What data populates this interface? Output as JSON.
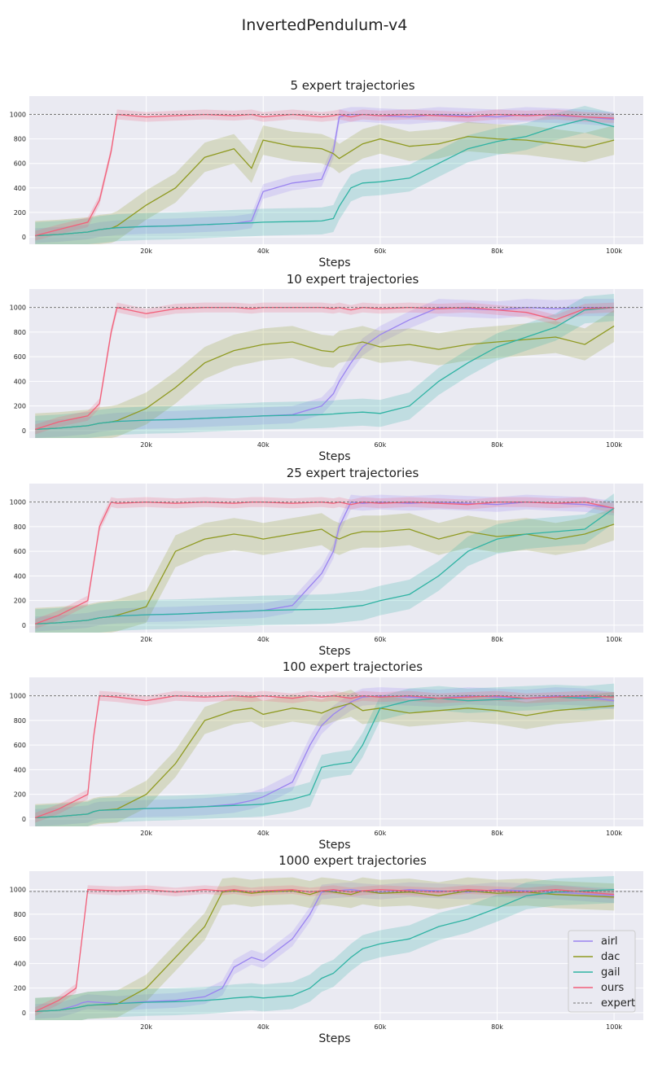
{
  "figure_title": "InvertedPendulum-v4",
  "colors": {
    "airl": "#9a83f0",
    "dac": "#8f9a21",
    "gail": "#2fb3a3",
    "ours": "#f2607a",
    "expert": "#777777",
    "panel_bg": "#eaeaf2",
    "grid": "#ffffff"
  },
  "chart_data": [
    {
      "type": "line",
      "title": "5 expert trajectories",
      "xlabel": "Steps",
      "ylabel": "",
      "xlim": [
        0,
        105000
      ],
      "ylim": [
        -60,
        1150
      ],
      "x_ticks": [
        20000,
        40000,
        60000,
        80000,
        100000
      ],
      "x_tick_labels": [
        "20k",
        "40k",
        "60k",
        "80k",
        "100k"
      ],
      "y_ticks": [
        0,
        200,
        400,
        600,
        800,
        1000
      ],
      "y_tick_labels": [
        "0",
        "200",
        "400",
        "600",
        "800",
        "1000"
      ],
      "expert_level": 1000,
      "x": [
        1000,
        5000,
        10000,
        12000,
        14000,
        15000,
        20000,
        25000,
        30000,
        35000,
        38000,
        40000,
        45000,
        50000,
        52000,
        53000,
        55000,
        57000,
        60000,
        65000,
        70000,
        75000,
        80000,
        85000,
        90000,
        95000,
        100000
      ],
      "series": [
        {
          "name": "airl",
          "values": [
            10,
            20,
            40,
            60,
            70,
            75,
            85,
            90,
            100,
            110,
            130,
            370,
            440,
            470,
            700,
            980,
            1000,
            1000,
            990,
            980,
            1000,
            990,
            980,
            1000,
            990,
            980,
            960
          ],
          "band": 60
        },
        {
          "name": "dac",
          "values": [
            10,
            20,
            40,
            60,
            70,
            90,
            260,
            400,
            650,
            720,
            560,
            790,
            740,
            720,
            680,
            640,
            700,
            760,
            800,
            740,
            760,
            820,
            800,
            790,
            760,
            730,
            790
          ],
          "band": 120
        },
        {
          "name": "gail",
          "values": [
            10,
            20,
            40,
            60,
            70,
            75,
            85,
            90,
            100,
            110,
            115,
            120,
            125,
            130,
            150,
            250,
            400,
            440,
            450,
            480,
            600,
            720,
            780,
            820,
            900,
            960,
            900
          ],
          "band": 110
        },
        {
          "name": "ours",
          "values": [
            10,
            60,
            120,
            300,
            700,
            1000,
            980,
            990,
            1000,
            990,
            1000,
            980,
            1000,
            980,
            990,
            1000,
            980,
            1000,
            990,
            1000,
            990,
            980,
            1000,
            990,
            1000,
            980,
            970
          ],
          "band": 40
        }
      ]
    },
    {
      "type": "line",
      "title": "10 expert trajectories",
      "xlabel": "Steps",
      "ylabel": "",
      "xlim": [
        0,
        105000
      ],
      "ylim": [
        -60,
        1150
      ],
      "x_ticks": [
        20000,
        40000,
        60000,
        80000,
        100000
      ],
      "x_tick_labels": [
        "20k",
        "40k",
        "60k",
        "80k",
        "100k"
      ],
      "y_ticks": [
        0,
        200,
        400,
        600,
        800,
        1000
      ],
      "y_tick_labels": [
        "0",
        "200",
        "400",
        "600",
        "800",
        "1000"
      ],
      "expert_level": 1000,
      "x": [
        1000,
        5000,
        10000,
        12000,
        14000,
        15000,
        20000,
        25000,
        30000,
        35000,
        38000,
        40000,
        45000,
        50000,
        52000,
        53000,
        55000,
        57000,
        60000,
        65000,
        70000,
        75000,
        80000,
        85000,
        90000,
        95000,
        100000
      ],
      "series": [
        {
          "name": "airl",
          "values": [
            10,
            20,
            40,
            60,
            70,
            75,
            85,
            90,
            100,
            110,
            115,
            120,
            130,
            200,
            300,
            400,
            550,
            680,
            780,
            900,
            1000,
            990,
            980,
            1000,
            990,
            1000,
            1000
          ],
          "band": 70
        },
        {
          "name": "dac",
          "values": [
            10,
            20,
            40,
            60,
            70,
            80,
            180,
            350,
            550,
            650,
            680,
            700,
            720,
            650,
            640,
            680,
            700,
            720,
            680,
            700,
            660,
            700,
            720,
            740,
            760,
            700,
            850
          ],
          "band": 130
        },
        {
          "name": "gail",
          "values": [
            10,
            20,
            40,
            60,
            70,
            75,
            85,
            90,
            100,
            110,
            115,
            120,
            125,
            130,
            135,
            140,
            145,
            150,
            140,
            200,
            400,
            550,
            680,
            760,
            840,
            980,
            1000
          ],
          "band": 110
        },
        {
          "name": "ours",
          "values": [
            10,
            70,
            120,
            220,
            800,
            1000,
            950,
            990,
            1000,
            1000,
            990,
            1000,
            1000,
            1000,
            990,
            1000,
            980,
            1000,
            990,
            1000,
            990,
            1000,
            980,
            960,
            900,
            990,
            1000
          ],
          "band": 40
        }
      ]
    },
    {
      "type": "line",
      "title": "25 expert trajectories",
      "xlabel": "Steps",
      "ylabel": "",
      "xlim": [
        0,
        105000
      ],
      "ylim": [
        -60,
        1150
      ],
      "x_ticks": [
        20000,
        40000,
        60000,
        80000,
        100000
      ],
      "x_tick_labels": [
        "20k",
        "40k",
        "60k",
        "80k",
        "100k"
      ],
      "y_ticks": [
        0,
        200,
        400,
        600,
        800,
        1000
      ],
      "y_tick_labels": [
        "0",
        "200",
        "400",
        "600",
        "800",
        "1000"
      ],
      "expert_level": 1000,
      "x": [
        1000,
        5000,
        10000,
        12000,
        14000,
        15000,
        20000,
        25000,
        30000,
        35000,
        38000,
        40000,
        45000,
        50000,
        52000,
        53000,
        55000,
        57000,
        60000,
        65000,
        70000,
        75000,
        80000,
        85000,
        90000,
        95000,
        100000
      ],
      "series": [
        {
          "name": "airl",
          "values": [
            10,
            20,
            40,
            60,
            70,
            75,
            85,
            90,
            100,
            110,
            115,
            120,
            160,
            420,
            600,
            800,
            1000,
            990,
            1000,
            990,
            1000,
            990,
            980,
            1000,
            990,
            980,
            950
          ],
          "band": 60
        },
        {
          "name": "dac",
          "values": [
            10,
            20,
            40,
            60,
            70,
            80,
            150,
            600,
            700,
            740,
            720,
            700,
            740,
            780,
            720,
            700,
            740,
            760,
            760,
            780,
            700,
            760,
            720,
            740,
            700,
            740,
            820
          ],
          "band": 130
        },
        {
          "name": "gail",
          "values": [
            10,
            20,
            40,
            60,
            70,
            75,
            85,
            90,
            100,
            110,
            115,
            120,
            125,
            130,
            135,
            140,
            150,
            160,
            200,
            250,
            400,
            600,
            700,
            740,
            760,
            780,
            950
          ],
          "band": 120
        },
        {
          "name": "ours",
          "values": [
            10,
            80,
            200,
            800,
            1000,
            990,
            1000,
            990,
            1000,
            990,
            1000,
            1000,
            990,
            1000,
            990,
            1000,
            980,
            1000,
            990,
            1000,
            990,
            980,
            1000,
            1000,
            990,
            1000,
            950
          ],
          "band": 40
        }
      ]
    },
    {
      "type": "line",
      "title": "100 expert trajectories",
      "xlabel": "Steps",
      "ylabel": "",
      "xlim": [
        0,
        105000
      ],
      "ylim": [
        -60,
        1150
      ],
      "x_ticks": [
        20000,
        40000,
        60000,
        80000,
        100000
      ],
      "x_tick_labels": [
        "20k",
        "40k",
        "60k",
        "80k",
        "100k"
      ],
      "y_ticks": [
        0,
        200,
        400,
        600,
        800,
        1000
      ],
      "y_tick_labels": [
        "0",
        "200",
        "400",
        "600",
        "800",
        "1000"
      ],
      "expert_level": 1000,
      "x": [
        1000,
        5000,
        10000,
        11000,
        12000,
        15000,
        20000,
        25000,
        30000,
        35000,
        38000,
        40000,
        45000,
        48000,
        50000,
        52000,
        55000,
        57000,
        60000,
        65000,
        70000,
        75000,
        80000,
        85000,
        90000,
        95000,
        100000
      ],
      "series": [
        {
          "name": "airl",
          "values": [
            10,
            20,
            40,
            60,
            70,
            75,
            85,
            90,
            100,
            120,
            150,
            180,
            300,
            600,
            760,
            850,
            950,
            990,
            1000,
            990,
            980,
            1000,
            990,
            980,
            1000,
            990,
            960
          ],
          "band": 70
        },
        {
          "name": "dac",
          "values": [
            10,
            20,
            40,
            60,
            70,
            80,
            200,
            450,
            800,
            880,
            900,
            850,
            900,
            880,
            860,
            900,
            940,
            880,
            900,
            860,
            880,
            900,
            880,
            840,
            880,
            900,
            920
          ],
          "band": 110
        },
        {
          "name": "gail",
          "values": [
            10,
            20,
            40,
            60,
            70,
            75,
            85,
            90,
            100,
            110,
            115,
            120,
            160,
            200,
            420,
            440,
            460,
            600,
            900,
            960,
            980,
            960,
            970,
            980,
            990,
            980,
            1000
          ],
          "band": 100
        },
        {
          "name": "ours",
          "values": [
            10,
            80,
            200,
            670,
            1000,
            990,
            960,
            1000,
            990,
            1000,
            990,
            1000,
            980,
            1000,
            990,
            1000,
            980,
            1000,
            990,
            1000,
            980,
            990,
            1000,
            980,
            990,
            1000,
            990
          ],
          "band": 40
        }
      ]
    },
    {
      "type": "line",
      "title": "1000 expert trajectories",
      "xlabel": "Steps",
      "ylabel": "",
      "xlim": [
        0,
        105000
      ],
      "ylim": [
        -60,
        1150
      ],
      "x_ticks": [
        20000,
        40000,
        60000,
        80000,
        100000
      ],
      "x_tick_labels": [
        "20k",
        "40k",
        "60k",
        "80k",
        "100k"
      ],
      "y_ticks": [
        0,
        200,
        400,
        600,
        800,
        1000
      ],
      "y_tick_labels": [
        "0",
        "200",
        "400",
        "600",
        "800",
        "1000"
      ],
      "expert_level": 985,
      "x": [
        1000,
        5000,
        8000,
        9000,
        10000,
        15000,
        20000,
        25000,
        30000,
        33000,
        35000,
        38000,
        40000,
        45000,
        48000,
        50000,
        52000,
        55000,
        57000,
        60000,
        65000,
        70000,
        75000,
        80000,
        85000,
        90000,
        100000
      ],
      "series": [
        {
          "name": "airl",
          "values": [
            10,
            20,
            60,
            80,
            90,
            75,
            90,
            100,
            130,
            200,
            370,
            450,
            420,
            600,
            800,
            980,
            990,
            1000,
            990,
            980,
            1000,
            990,
            980,
            1000,
            990,
            980,
            950
          ],
          "band": 60
        },
        {
          "name": "dac",
          "values": [
            10,
            20,
            40,
            50,
            60,
            70,
            200,
            450,
            700,
            980,
            990,
            970,
            980,
            990,
            960,
            990,
            980,
            960,
            990,
            970,
            980,
            950,
            990,
            970,
            980,
            960,
            940
          ],
          "band": 110
        },
        {
          "name": "gail",
          "values": [
            10,
            20,
            40,
            50,
            60,
            75,
            85,
            90,
            100,
            110,
            120,
            130,
            120,
            140,
            200,
            280,
            320,
            450,
            520,
            560,
            600,
            700,
            760,
            850,
            950,
            980,
            1000
          ],
          "band": 110
        },
        {
          "name": "ours",
          "values": [
            10,
            100,
            200,
            600,
            1000,
            990,
            1000,
            980,
            1000,
            990,
            1000,
            980,
            990,
            1000,
            980,
            990,
            1000,
            980,
            990,
            1000,
            990,
            980,
            1000,
            990,
            980,
            1000,
            960
          ],
          "band": 35
        }
      ]
    }
  ],
  "legend": {
    "items": [
      {
        "key": "airl",
        "label": "airl"
      },
      {
        "key": "dac",
        "label": "dac"
      },
      {
        "key": "gail",
        "label": "gail"
      },
      {
        "key": "ours",
        "label": "ours"
      },
      {
        "key": "expert",
        "label": "expert"
      }
    ]
  }
}
